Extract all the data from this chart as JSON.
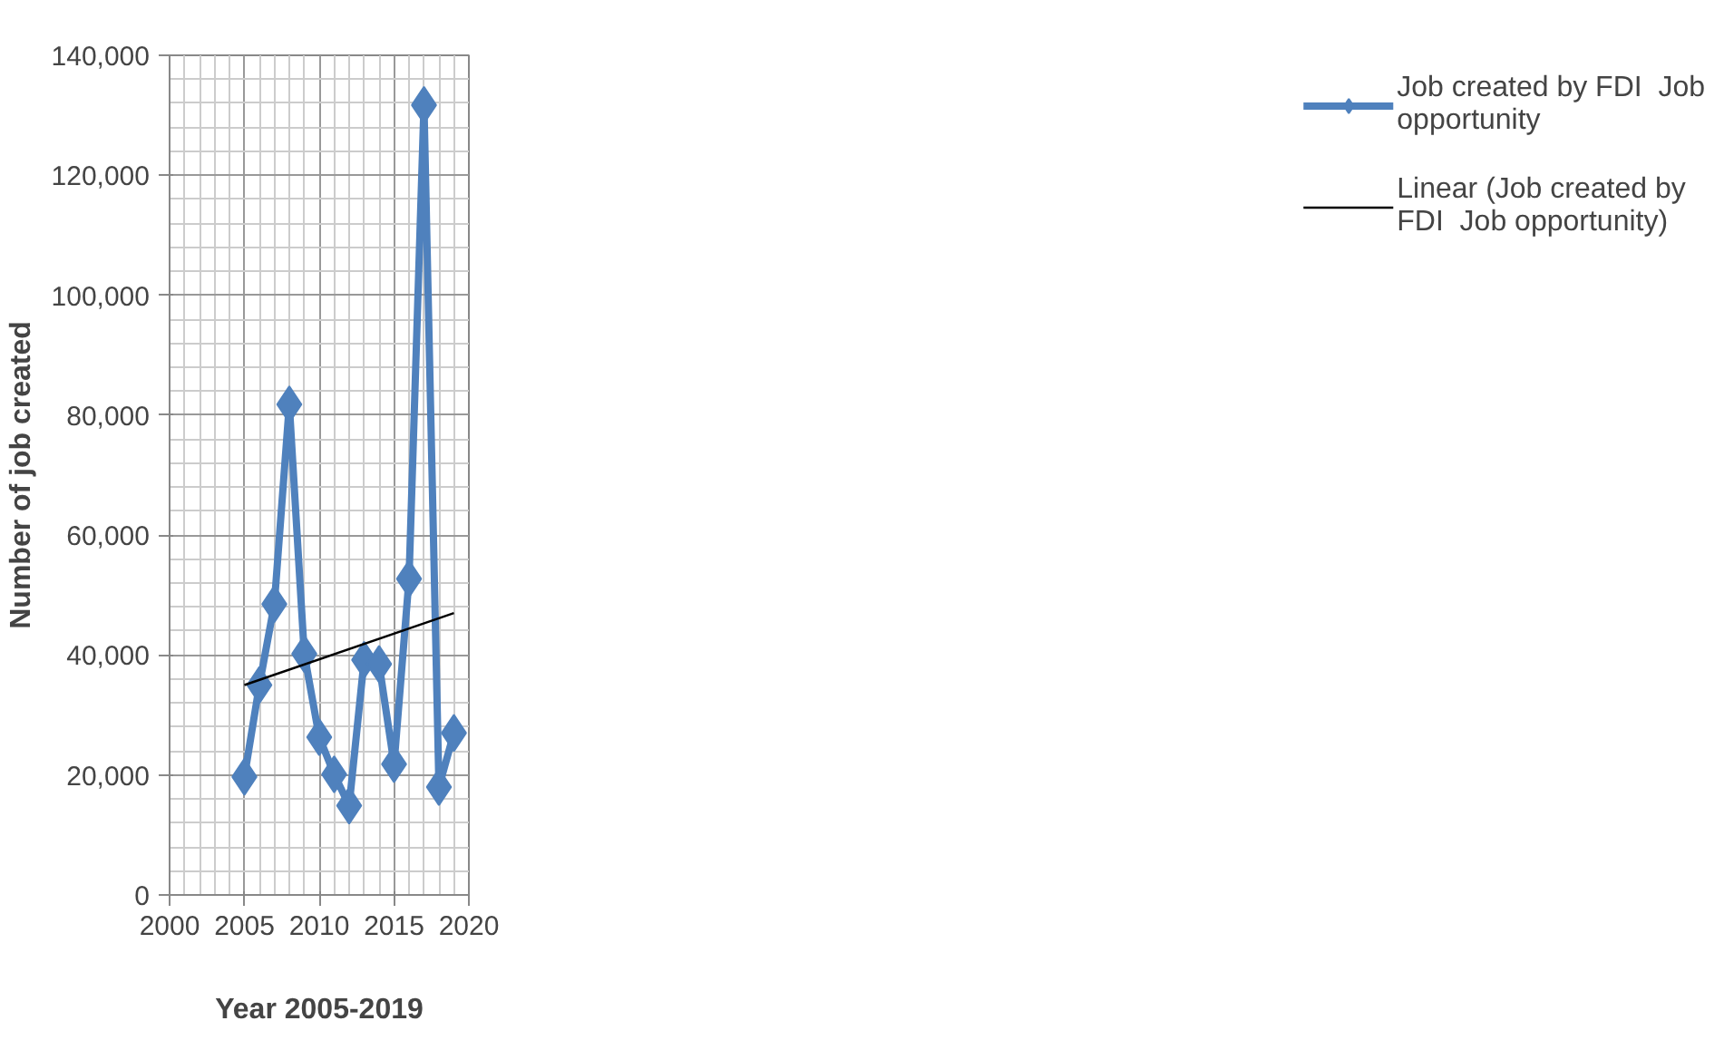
{
  "chart_data": {
    "type": "line",
    "xlabel": "Year 2005-2019",
    "ylabel": "Number of job created",
    "x": [
      2005,
      2006,
      2007,
      2008,
      2009,
      2010,
      2011,
      2012,
      2013,
      2014,
      2015,
      2016,
      2017,
      2018,
      2019
    ],
    "series": [
      {
        "name": "Job created by FDI  Job opportunity",
        "color": "#4f81bd",
        "marker": "diamond",
        "values": [
          19700,
          35000,
          48500,
          81800,
          40200,
          26300,
          20100,
          14900,
          39200,
          38500,
          21800,
          52700,
          131700,
          18000,
          27000
        ]
      },
      {
        "name": "Linear (Job created by FDI  Job opportunity)",
        "color": "#000000",
        "marker": "none",
        "x": [
          2005,
          2019
        ],
        "values": [
          35000,
          47000
        ]
      }
    ],
    "xlim": [
      2000,
      2020
    ],
    "xticks": [
      2000,
      2005,
      2010,
      2015,
      2020
    ],
    "ylim": [
      0,
      140000
    ],
    "yticks": [
      {
        "value": 0,
        "label": "0"
      },
      {
        "value": 20000,
        "label": "20,000"
      },
      {
        "value": 40000,
        "label": "40,000"
      },
      {
        "value": 60000,
        "label": "60,000"
      },
      {
        "value": 80000,
        "label": "80,000"
      },
      {
        "value": 100000,
        "label": "100,000"
      },
      {
        "value": 120000,
        "label": "120,000"
      },
      {
        "value": 140000,
        "label": "140,000"
      }
    ],
    "grid": true,
    "legend": "right"
  }
}
